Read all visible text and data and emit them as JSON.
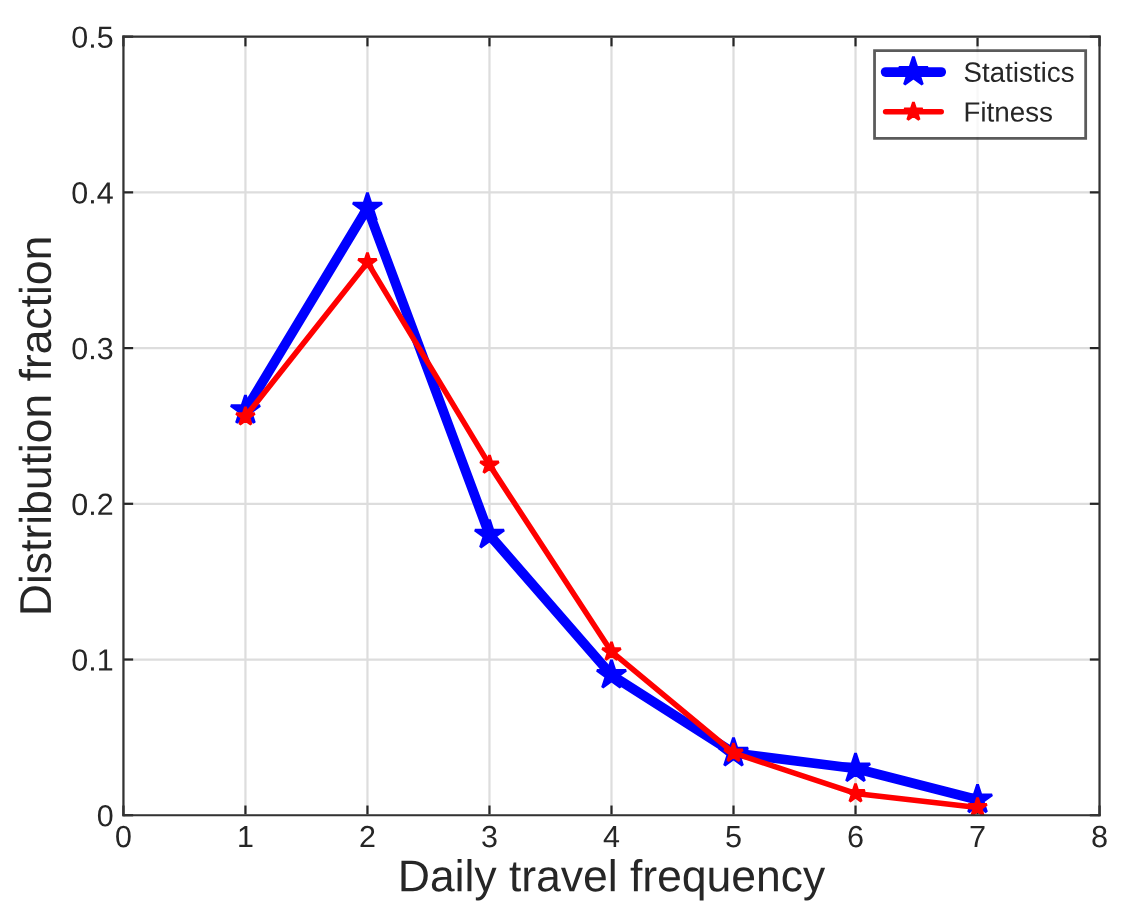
{
  "chart_data": {
    "type": "line",
    "xlabel": "Daily travel frequency",
    "ylabel": "Distribution fraction",
    "x": [
      1,
      2,
      3,
      4,
      5,
      6,
      7
    ],
    "series": [
      {
        "name": "Statistics",
        "color": "#0000ff",
        "values": [
          0.26,
          0.39,
          0.18,
          0.09,
          0.04,
          0.03,
          0.01
        ]
      },
      {
        "name": "Fitness",
        "color": "#ff0000",
        "values": [
          0.256,
          0.355,
          0.225,
          0.105,
          0.04,
          0.014,
          0.005
        ]
      }
    ],
    "xlim": [
      0,
      8
    ],
    "xticks": [
      0,
      1,
      2,
      3,
      4,
      5,
      6,
      7,
      8
    ],
    "ylim": [
      0,
      0.5
    ],
    "yticks": [
      0,
      0.1,
      0.2,
      0.3,
      0.4,
      0.5
    ],
    "grid": true,
    "legend": "top right",
    "marker": "star",
    "line_style": "solid"
  }
}
